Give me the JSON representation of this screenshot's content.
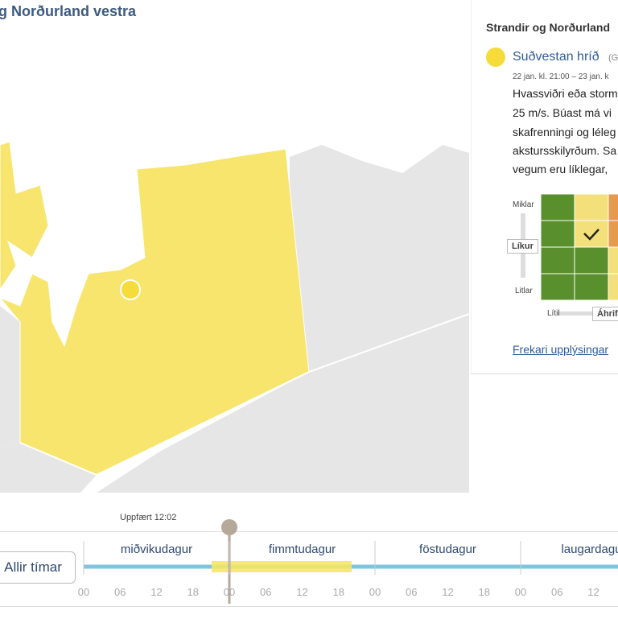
{
  "header": {
    "title": "g Norðurland vestra"
  },
  "sidebar": {
    "region": "Strandir og Norðurland",
    "warning": {
      "title": "Suðvestan hríð",
      "tag": "(G",
      "time": "22 jan. kl. 21:00 – 23 jan. k",
      "description": [
        "Hvassviðri eða storm",
        "25 m/s. Búast má vi",
        "skafrenningi og léleg",
        "akstursskilyrðum. Sa",
        "vegum eru líklegar, "
      ]
    },
    "matrix": {
      "likelihood_high": "Miklar",
      "likelihood": "Líkur",
      "likelihood_low": "Litlar",
      "impact_low": "Lítil",
      "impact": "Áhrif"
    },
    "link": "Frekari upplýsingar"
  },
  "timeline": {
    "updated": "Uppfært 12:02",
    "button": "Allir tímar",
    "days": [
      "miðvikudagur",
      "fimmtudagur",
      "föstudagur",
      "laugardagur"
    ],
    "hours": [
      "00",
      "06",
      "12",
      "18",
      "00",
      "06",
      "12",
      "18",
      "00",
      "06",
      "12",
      "18",
      "00",
      "06",
      "12"
    ]
  }
}
